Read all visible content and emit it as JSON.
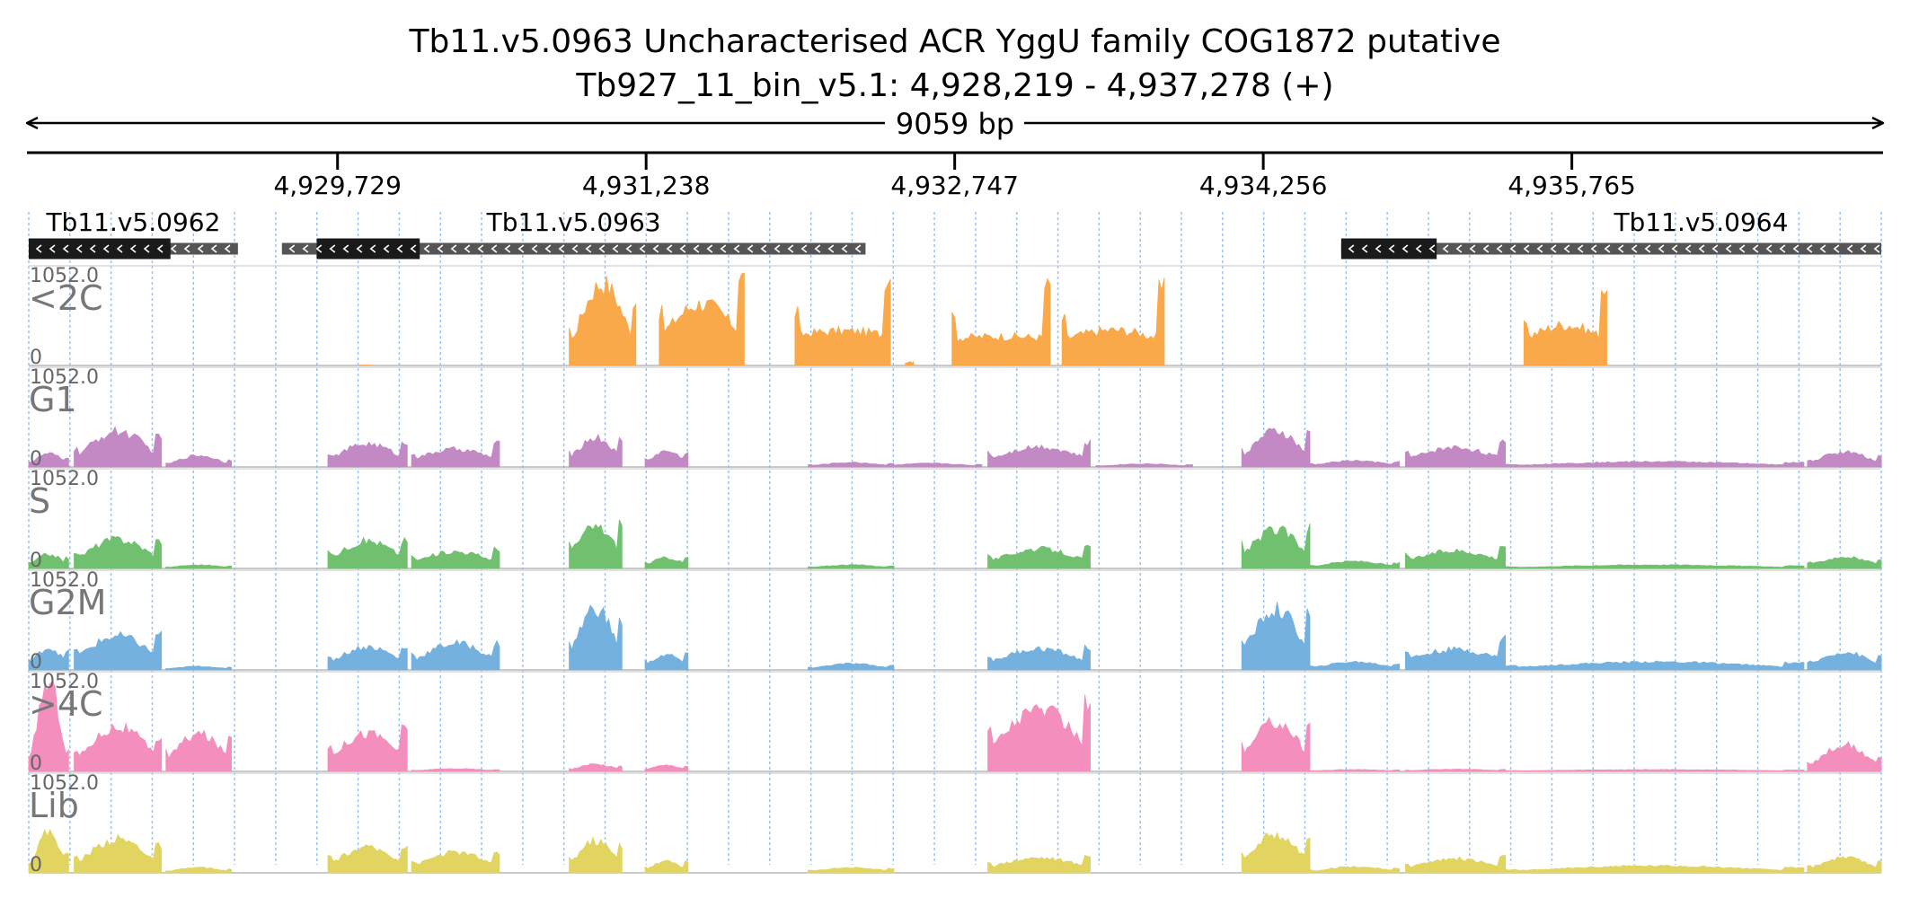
{
  "chart_data": {
    "type": "area",
    "title": "Tb11.v5.0963  Uncharacterised ACR  YggU family COG1872  putative",
    "subtitle": "Tb927_11_bin_v5.1: 4,928,219 - 4,937,278 (+)",
    "span_label": "9059 bp",
    "xlim": [
      4928219,
      4937278
    ],
    "x_ticks": [
      {
        "value": 4929729,
        "label": "4,929,729"
      },
      {
        "value": 4931238,
        "label": "4,931,238"
      },
      {
        "value": 4932747,
        "label": "4,932,747"
      },
      {
        "value": 4934256,
        "label": "4,934,256"
      },
      {
        "value": 4935765,
        "label": "4,935,765"
      }
    ],
    "genes": [
      {
        "name": "Tb11.v5.0962",
        "start": 4928219,
        "end": 4929242,
        "cds_start": 4928219,
        "cds_end": 4928912,
        "strand": "-"
      },
      {
        "name": "Tb11.v5.0963",
        "start": 4929457,
        "end": 4932311,
        "cds_start": 4929627,
        "cds_end": 4930131,
        "strand": "-"
      },
      {
        "name": "Tb11.v5.0964",
        "start": 4934637,
        "end": 4937278,
        "cds_start": 4934637,
        "cds_end": 4935104,
        "strand": "-"
      }
    ],
    "ylim": [
      0,
      1052.0
    ],
    "ymax_label": "1052.0",
    "ymin_label": "0",
    "tracks": [
      {
        "name": "<2C",
        "color": "#f9a94a",
        "regions": [
          {
            "start": 4929839,
            "end": 4929893,
            "peak": 5,
            "edge": 5
          },
          {
            "start": 4930862,
            "end": 4931188,
            "peak": 930,
            "edge": 720
          },
          {
            "start": 4931302,
            "end": 4931718,
            "peak": 700,
            "edge": 1000
          },
          {
            "start": 4931966,
            "end": 4932433,
            "peak": 390,
            "edge": 1000
          },
          {
            "start": 4932505,
            "end": 4932546,
            "peak": 45,
            "edge": 50
          },
          {
            "start": 4932734,
            "end": 4933214,
            "peak": 330,
            "edge": 890
          },
          {
            "start": 4933272,
            "end": 4933772,
            "peak": 400,
            "edge": 870
          },
          {
            "start": 4935531,
            "end": 4935936,
            "peak": 460,
            "edge": 890
          }
        ]
      },
      {
        "name": "G1",
        "color": "#c289c4",
        "regions": [
          {
            "start": 4928219,
            "end": 4928414,
            "peak": 150,
            "edge": 110
          },
          {
            "start": 4928441,
            "end": 4928868,
            "peak": 400,
            "edge": 330
          },
          {
            "start": 4928890,
            "end": 4929210,
            "peak": 130,
            "edge": 80
          },
          {
            "start": 4929682,
            "end": 4930070,
            "peak": 260,
            "edge": 260
          },
          {
            "start": 4930091,
            "end": 4930521,
            "peak": 200,
            "edge": 260
          },
          {
            "start": 4930862,
            "end": 4931120,
            "peak": 330,
            "edge": 310
          },
          {
            "start": 4931233,
            "end": 4931443,
            "peak": 180,
            "edge": 170
          },
          {
            "start": 4932030,
            "end": 4932450,
            "peak": 50,
            "edge": 40
          },
          {
            "start": 4932384,
            "end": 4932880,
            "peak": 40,
            "edge": 30
          },
          {
            "start": 4932909,
            "end": 4933410,
            "peak": 230,
            "edge": 270
          },
          {
            "start": 4933438,
            "end": 4933910,
            "peak": 35,
            "edge": 25
          },
          {
            "start": 4934151,
            "end": 4934484,
            "peak": 400,
            "edge": 370
          },
          {
            "start": 4934484,
            "end": 4934922,
            "peak": 70,
            "edge": 60
          },
          {
            "start": 4934951,
            "end": 4935440,
            "peak": 220,
            "edge": 270
          },
          {
            "start": 4935440,
            "end": 4936900,
            "peak": 60,
            "edge": 50
          },
          {
            "start": 4936917,
            "end": 4937278,
            "peak": 170,
            "edge": 130
          }
        ]
      },
      {
        "name": "S",
        "color": "#71c06f",
        "regions": [
          {
            "start": 4928219,
            "end": 4928414,
            "peak": 160,
            "edge": 120
          },
          {
            "start": 4928441,
            "end": 4928868,
            "peak": 330,
            "edge": 310
          },
          {
            "start": 4928890,
            "end": 4929210,
            "peak": 40,
            "edge": 30
          },
          {
            "start": 4929682,
            "end": 4930070,
            "peak": 310,
            "edge": 310
          },
          {
            "start": 4930091,
            "end": 4930521,
            "peak": 190,
            "edge": 220
          },
          {
            "start": 4930862,
            "end": 4931120,
            "peak": 470,
            "edge": 520
          },
          {
            "start": 4931233,
            "end": 4931443,
            "peak": 120,
            "edge": 120
          },
          {
            "start": 4932030,
            "end": 4932450,
            "peak": 40,
            "edge": 30
          },
          {
            "start": 4932909,
            "end": 4933410,
            "peak": 220,
            "edge": 240
          },
          {
            "start": 4934151,
            "end": 4934484,
            "peak": 440,
            "edge": 460
          },
          {
            "start": 4934484,
            "end": 4934922,
            "peak": 80,
            "edge": 60
          },
          {
            "start": 4934951,
            "end": 4935440,
            "peak": 200,
            "edge": 260
          },
          {
            "start": 4935440,
            "end": 4936900,
            "peak": 40,
            "edge": 30
          },
          {
            "start": 4936917,
            "end": 4937278,
            "peak": 130,
            "edge": 110
          }
        ]
      },
      {
        "name": "G2M",
        "color": "#75b1df",
        "regions": [
          {
            "start": 4928219,
            "end": 4928414,
            "peak": 250,
            "edge": 200
          },
          {
            "start": 4928441,
            "end": 4928868,
            "peak": 380,
            "edge": 410
          },
          {
            "start": 4928890,
            "end": 4929210,
            "peak": 40,
            "edge": 30
          },
          {
            "start": 4929682,
            "end": 4930070,
            "peak": 260,
            "edge": 250
          },
          {
            "start": 4930091,
            "end": 4930521,
            "peak": 300,
            "edge": 300
          },
          {
            "start": 4930862,
            "end": 4931120,
            "peak": 700,
            "edge": 560
          },
          {
            "start": 4931233,
            "end": 4931443,
            "peak": 170,
            "edge": 170
          },
          {
            "start": 4932030,
            "end": 4932450,
            "peak": 70,
            "edge": 50
          },
          {
            "start": 4932909,
            "end": 4933410,
            "peak": 240,
            "edge": 250
          },
          {
            "start": 4934151,
            "end": 4934484,
            "peak": 680,
            "edge": 640
          },
          {
            "start": 4934484,
            "end": 4934922,
            "peak": 90,
            "edge": 70
          },
          {
            "start": 4934951,
            "end": 4935440,
            "peak": 230,
            "edge": 360
          },
          {
            "start": 4935440,
            "end": 4936900,
            "peak": 90,
            "edge": 80
          },
          {
            "start": 4936917,
            "end": 4937278,
            "peak": 200,
            "edge": 160
          }
        ]
      },
      {
        "name": ">4C",
        "color": "#f48fbd",
        "regions": [
          {
            "start": 4928219,
            "end": 4928414,
            "peak": 1000,
            "edge": 220
          },
          {
            "start": 4928441,
            "end": 4928868,
            "peak": 500,
            "edge": 380
          },
          {
            "start": 4928890,
            "end": 4929210,
            "peak": 420,
            "edge": 420
          },
          {
            "start": 4929682,
            "end": 4930070,
            "peak": 430,
            "edge": 480
          },
          {
            "start": 4930091,
            "end": 4930521,
            "peak": 30,
            "edge": 20
          },
          {
            "start": 4930862,
            "end": 4931120,
            "peak": 80,
            "edge": 60
          },
          {
            "start": 4931233,
            "end": 4931443,
            "peak": 70,
            "edge": 60
          },
          {
            "start": 4932909,
            "end": 4933410,
            "peak": 700,
            "edge": 760
          },
          {
            "start": 4934151,
            "end": 4934484,
            "peak": 560,
            "edge": 520
          },
          {
            "start": 4934484,
            "end": 4934922,
            "peak": 20,
            "edge": 15
          },
          {
            "start": 4934951,
            "end": 4935440,
            "peak": 25,
            "edge": 20
          },
          {
            "start": 4935440,
            "end": 4936900,
            "peak": 20,
            "edge": 15
          },
          {
            "start": 4936917,
            "end": 4937278,
            "peak": 300,
            "edge": 150
          }
        ]
      },
      {
        "name": "Lib",
        "color": "#e1d460",
        "regions": [
          {
            "start": 4928219,
            "end": 4928414,
            "peak": 460,
            "edge": 200
          },
          {
            "start": 4928441,
            "end": 4928868,
            "peak": 380,
            "edge": 300
          },
          {
            "start": 4928890,
            "end": 4929210,
            "peak": 60,
            "edge": 40
          },
          {
            "start": 4929682,
            "end": 4930070,
            "peak": 280,
            "edge": 300
          },
          {
            "start": 4930091,
            "end": 4930521,
            "peak": 230,
            "edge": 220
          },
          {
            "start": 4930862,
            "end": 4931120,
            "peak": 360,
            "edge": 320
          },
          {
            "start": 4931233,
            "end": 4931443,
            "peak": 130,
            "edge": 120
          },
          {
            "start": 4932030,
            "end": 4932450,
            "peak": 60,
            "edge": 50
          },
          {
            "start": 4932909,
            "end": 4933410,
            "peak": 170,
            "edge": 200
          },
          {
            "start": 4934151,
            "end": 4934484,
            "peak": 430,
            "edge": 420
          },
          {
            "start": 4934484,
            "end": 4934922,
            "peak": 70,
            "edge": 50
          },
          {
            "start": 4934951,
            "end": 4935440,
            "peak": 160,
            "edge": 180
          },
          {
            "start": 4935440,
            "end": 4936900,
            "peak": 80,
            "edge": 60
          },
          {
            "start": 4936917,
            "end": 4937278,
            "peak": 170,
            "edge": 140
          }
        ]
      }
    ],
    "grid": true
  }
}
